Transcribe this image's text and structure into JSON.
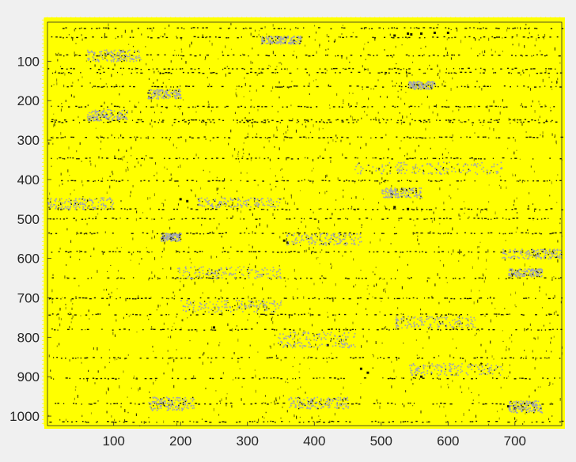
{
  "chart_data": {
    "type": "scatter",
    "title": "",
    "xlabel": "",
    "ylabel": "",
    "xlim": [
      1,
      770
    ],
    "ylim": [
      1,
      1024
    ],
    "y_reversed": true,
    "x_ticks": [
      "100",
      "200",
      "300",
      "400",
      "500",
      "600",
      "700"
    ],
    "y_ticks": [
      "100",
      "200",
      "300",
      "400",
      "500",
      "600",
      "700",
      "800",
      "900",
      "1000"
    ],
    "grid": false,
    "legend": "none",
    "colors": {
      "background": "#f0f0f0",
      "plot_fill": "#ffff00",
      "marker_yellow": "#ffff00",
      "marker_dark": "#1a1a00",
      "marker_gray": "#a0a4b4",
      "axis": "#262626"
    },
    "series": [
      {
        "color": "#ffff00",
        "note_clusters": [],
        "points": []
      },
      {
        "color": "#1a1a00",
        "rows": [
          15,
          38,
          84,
          118,
          128,
          163,
          214,
          248,
          253,
          292,
          345,
          402,
          474,
          498,
          535,
          582,
          649,
          700,
          741,
          779,
          851,
          903,
          967,
          1013
        ],
        "points": [
          [
            540,
            30
          ],
          [
            560,
            30
          ],
          [
            580,
            28
          ],
          [
            520,
            35
          ],
          [
            545,
            32
          ],
          [
            600,
            28
          ],
          [
            200,
            450
          ],
          [
            210,
            455
          ],
          [
            355,
            555
          ],
          [
            360,
            560
          ],
          [
            520,
            470
          ],
          [
            540,
            475
          ],
          [
            690,
            975
          ],
          [
            700,
            980
          ],
          [
            560,
            900
          ],
          [
            420,
            820
          ],
          [
            250,
            775
          ],
          [
            470,
            880
          ],
          [
            480,
            890
          ]
        ]
      },
      {
        "color": "#a0a4b4",
        "clusters": [
          {
            "x": [
              320,
              380
            ],
            "y": [
              35,
              55
            ]
          },
          {
            "x": [
              60,
              140
            ],
            "y": [
              70,
              100
            ]
          },
          {
            "x": [
              150,
              200
            ],
            "y": [
              170,
              195
            ]
          },
          {
            "x": [
              60,
              120
            ],
            "y": [
              220,
              250
            ]
          },
          {
            "x": [
              540,
              580
            ],
            "y": [
              150,
              170
            ]
          },
          {
            "x": [
              460,
              680
            ],
            "y": [
              355,
              385
            ]
          },
          {
            "x": [
              500,
              560
            ],
            "y": [
              420,
              445
            ]
          },
          {
            "x": [
              0,
              100
            ],
            "y": [
              445,
              475
            ]
          },
          {
            "x": [
              225,
              350
            ],
            "y": [
              445,
              470
            ]
          },
          {
            "x": [
              355,
              470
            ],
            "y": [
              535,
              565
            ]
          },
          {
            "x": [
              170,
              200
            ],
            "y": [
              535,
              555
            ]
          },
          {
            "x": [
              195,
              350
            ],
            "y": [
              620,
              650
            ]
          },
          {
            "x": [
              680,
              770
            ],
            "y": [
              575,
              600
            ]
          },
          {
            "x": [
              690,
              740
            ],
            "y": [
              625,
              645
            ]
          },
          {
            "x": [
              200,
              350
            ],
            "y": [
              705,
              735
            ]
          },
          {
            "x": [
              520,
              640
            ],
            "y": [
              745,
              775
            ]
          },
          {
            "x": [
              345,
              460
            ],
            "y": [
              785,
              825
            ]
          },
          {
            "x": [
              540,
              680
            ],
            "y": [
              865,
              895
            ]
          },
          {
            "x": [
              150,
              220
            ],
            "y": [
              950,
              985
            ]
          },
          {
            "x": [
              360,
              450
            ],
            "y": [
              950,
              980
            ]
          },
          {
            "x": [
              690,
              740
            ],
            "y": [
              960,
              990
            ]
          }
        ]
      }
    ]
  }
}
